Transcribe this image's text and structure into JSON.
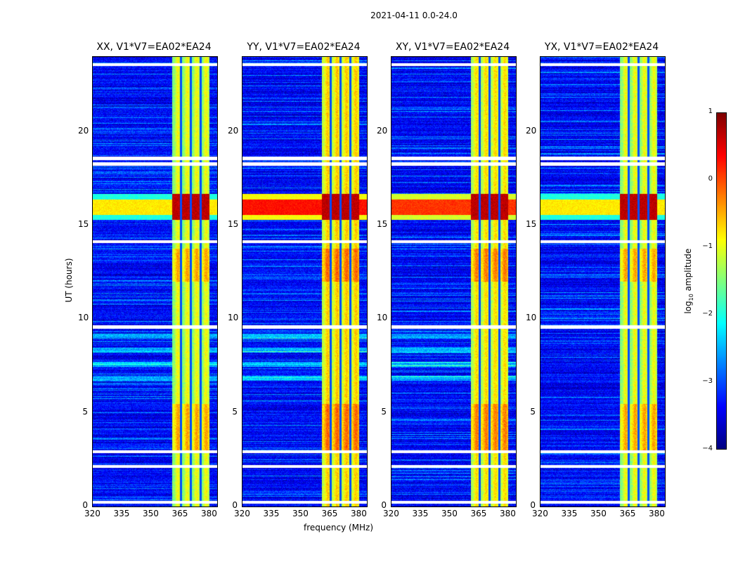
{
  "chart_data": {
    "type": "heatmap",
    "suptitle": "2021-04-11 0.0-24.0",
    "xlabel": "frequency (MHz)",
    "ylabel": "UT (hours)",
    "xlim": [
      320,
      384
    ],
    "ylim": [
      0,
      24
    ],
    "xticks": [
      "320",
      "335",
      "350",
      "365",
      "380"
    ],
    "xtick_values": [
      320,
      335,
      350,
      365,
      380
    ],
    "yticks": [
      "0",
      "5",
      "10",
      "15",
      "20"
    ],
    "ytick_values": [
      0,
      5,
      10,
      15,
      20
    ],
    "panels": [
      {
        "title": "XX, V1*V7=EA02*EA24",
        "event_strength": 0.4,
        "band_level": -1.2
      },
      {
        "title": "YY, V1*V7=EA02*EA24",
        "event_strength": 1.0,
        "band_level": -0.9
      },
      {
        "title": "XY, V1*V7=EA02*EA24",
        "event_strength": 0.9,
        "band_level": -1.0
      },
      {
        "title": "YX, V1*V7=EA02*EA24",
        "event_strength": 0.4,
        "band_level": -1.2
      }
    ],
    "background_log_amplitude": -3.4,
    "rfi_band_mhz": [
      360.5,
      380
    ],
    "rfi_gap_lines_mhz": [
      365.2,
      370.3,
      375.3
    ],
    "strong_event_hours": [
      15.3,
      16.7
    ],
    "flagged_hours": [
      0.25,
      2.15,
      2.95,
      9.6,
      14.15,
      18.3,
      18.6,
      23.6
    ],
    "colorbar": {
      "label": "log10 amplitude",
      "label_main": "log",
      "label_sub": "10",
      "label_rest": " amplitude",
      "range": [
        -4,
        1
      ],
      "ticks": [
        "1",
        "0",
        "−1",
        "−2",
        "−3",
        "−4"
      ],
      "tick_values": [
        1,
        0,
        -1,
        -2,
        -3,
        -4
      ],
      "colormap": "jet"
    }
  }
}
